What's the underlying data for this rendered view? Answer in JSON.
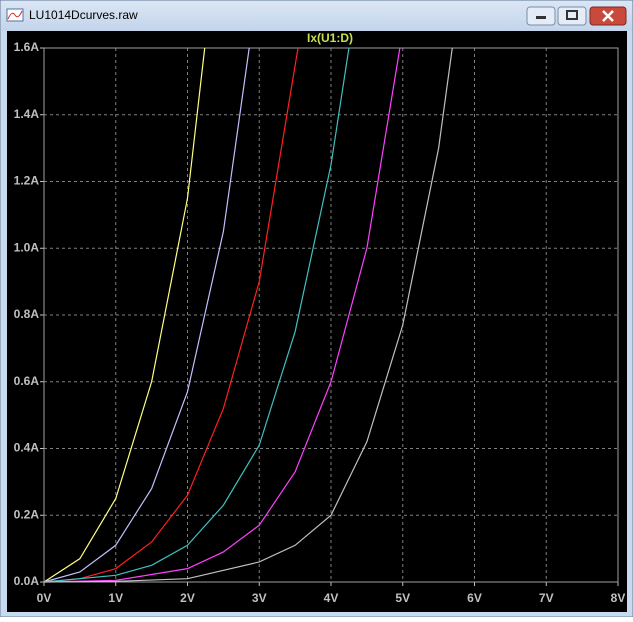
{
  "window": {
    "title": "LU1014Dcurves.raw"
  },
  "chart_data": {
    "type": "line",
    "title": "Ix(U1:D)",
    "xlim": [
      0,
      8
    ],
    "xticks": [
      {
        "value": 0,
        "label": "0V"
      },
      {
        "value": 1,
        "label": "1V"
      },
      {
        "value": 2,
        "label": "2V"
      },
      {
        "value": 3,
        "label": "3V"
      },
      {
        "value": 4,
        "label": "4V"
      },
      {
        "value": 5,
        "label": "5V"
      },
      {
        "value": 6,
        "label": "6V"
      },
      {
        "value": 7,
        "label": "7V"
      },
      {
        "value": 8,
        "label": "8V"
      }
    ],
    "ylim": [
      0,
      1.6
    ],
    "yticks": [
      {
        "value": 0,
        "label": "0.0A"
      },
      {
        "value": 0.2,
        "label": "0.2A"
      },
      {
        "value": 0.4,
        "label": "0.4A"
      },
      {
        "value": 0.6,
        "label": "0.6A"
      },
      {
        "value": 0.8,
        "label": "0.8A"
      },
      {
        "value": 1.0,
        "label": "1.0A"
      },
      {
        "value": 1.2,
        "label": "1.2A"
      },
      {
        "value": 1.4,
        "label": "1.4A"
      },
      {
        "value": 1.6,
        "label": "1.6A"
      }
    ],
    "grid": true,
    "series": [
      {
        "color": "#ffff80",
        "x": [
          0,
          0.5,
          1,
          1.5,
          2,
          2.24
        ],
        "values": [
          0,
          0.07,
          0.25,
          0.6,
          1.15,
          1.6
        ]
      },
      {
        "color": "#c0c0ff",
        "x": [
          0,
          0.5,
          1,
          1.5,
          2,
          2.5,
          2.86
        ],
        "values": [
          0,
          0.03,
          0.11,
          0.28,
          0.57,
          1.05,
          1.6
        ]
      },
      {
        "color": "#ff2020",
        "x": [
          0,
          0.5,
          1,
          1.5,
          2,
          2.5,
          3,
          3.54
        ],
        "values": [
          0,
          0.01,
          0.04,
          0.12,
          0.26,
          0.52,
          0.9,
          1.6
        ]
      },
      {
        "color": "#40c0c0",
        "x": [
          0,
          1,
          1.5,
          2,
          2.5,
          3,
          3.5,
          4,
          4.25
        ],
        "values": [
          0,
          0.02,
          0.05,
          0.11,
          0.23,
          0.41,
          0.75,
          1.25,
          1.6
        ]
      },
      {
        "color": "#ff40ff",
        "x": [
          0,
          1,
          2,
          2.5,
          3,
          3.5,
          4,
          4.5,
          4.96
        ],
        "values": [
          0,
          0.005,
          0.04,
          0.09,
          0.17,
          0.33,
          0.6,
          1.0,
          1.6
        ]
      },
      {
        "color": "#c0c0c0",
        "x": [
          0,
          1,
          2,
          3,
          3.5,
          4,
          4.5,
          5,
          5.5,
          5.69
        ],
        "values": [
          0,
          0.002,
          0.01,
          0.06,
          0.11,
          0.2,
          0.42,
          0.77,
          1.3,
          1.6
        ]
      }
    ]
  }
}
